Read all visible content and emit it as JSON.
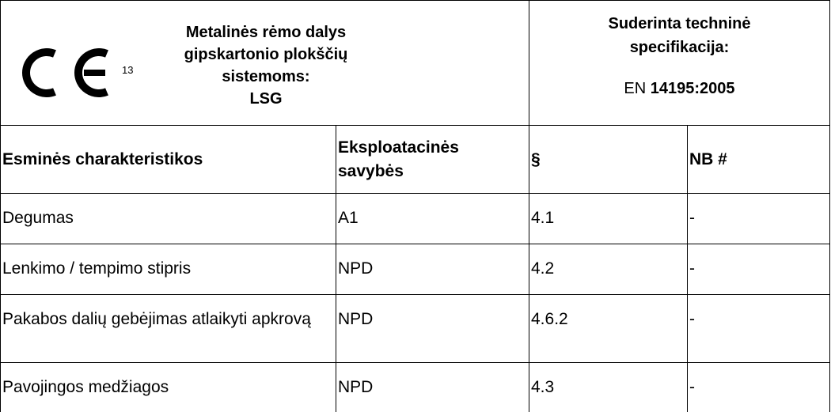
{
  "header": {
    "ce_number": "13",
    "title": "Metalinės rėmo dalys gipskartonio plokščių sistemoms:",
    "product": "LSG",
    "spec_title": "Suderinta techninė specifikacija:",
    "spec_prefix": "EN",
    "spec_code": "14195:2005"
  },
  "table": {
    "columns": [
      "Esminės charakteristikos",
      "Eksploatacinės savybės",
      "§",
      "NB #"
    ],
    "rows": [
      [
        "Degumas",
        "A1",
        "4.1",
        "-"
      ],
      [
        "Lenkimo / tempimo stipris",
        "NPD",
        "4.2",
        "-"
      ],
      [
        "Pakabos dalių gebėjimas atlaikyti apkrovą",
        "NPD",
        "4.6.2",
        "-"
      ],
      [
        "Pavojingos medžiagos",
        "NPD",
        "4.3",
        "-"
      ]
    ]
  }
}
